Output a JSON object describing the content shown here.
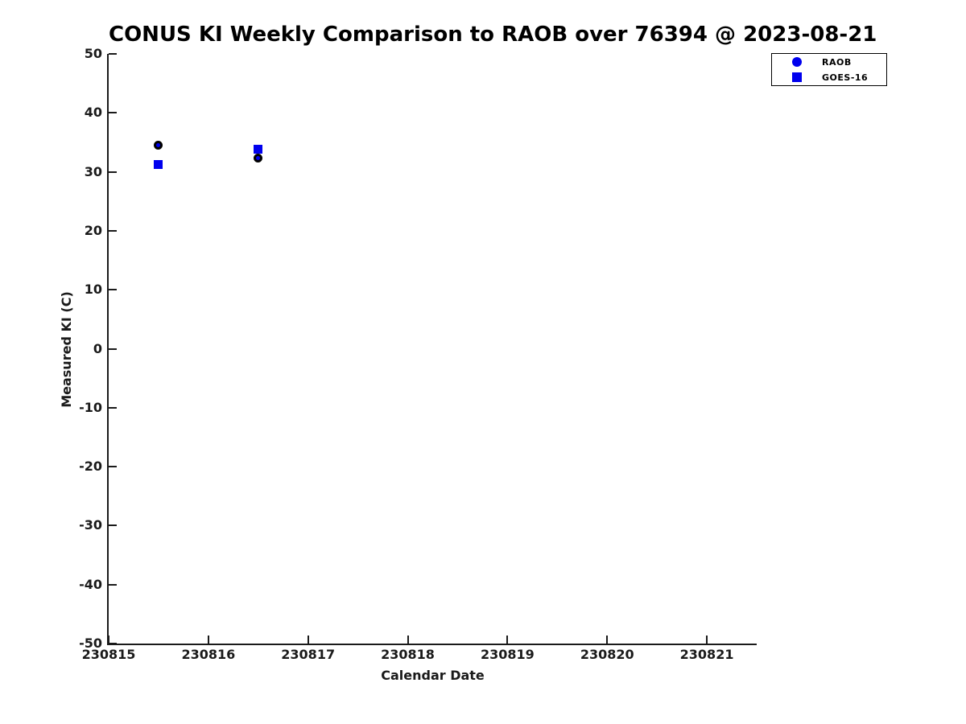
{
  "chart_data": {
    "type": "scatter",
    "title": "CONUS KI Weekly Comparison to RAOB over 76394 @ 2023-08-21",
    "xlabel": "Calendar Date",
    "ylabel": "Measured KI (C)",
    "xlim": [
      230815,
      230821.5
    ],
    "ylim": [
      -50,
      50
    ],
    "xticks": [
      230815,
      230816,
      230817,
      230818,
      230819,
      230820,
      230821
    ],
    "yticks": [
      -50,
      -40,
      -30,
      -20,
      -10,
      0,
      10,
      20,
      30,
      40,
      50
    ],
    "grid": false,
    "legend_position": "upper-right-outside-plot",
    "axis_color": "#1a1a1a",
    "series": [
      {
        "name": "RAOB",
        "marker": "circle",
        "face_color": "#0000ee",
        "edge_color": "#000000",
        "points": [
          [
            230815.5,
            34.5
          ],
          [
            230816.5,
            32.4
          ]
        ]
      },
      {
        "name": "GOES-16",
        "marker": "square",
        "face_color": "#0000ee",
        "edge_color": "#0000ee",
        "points": [
          [
            230815.5,
            31.2
          ],
          [
            230816.5,
            33.8
          ]
        ]
      }
    ]
  }
}
